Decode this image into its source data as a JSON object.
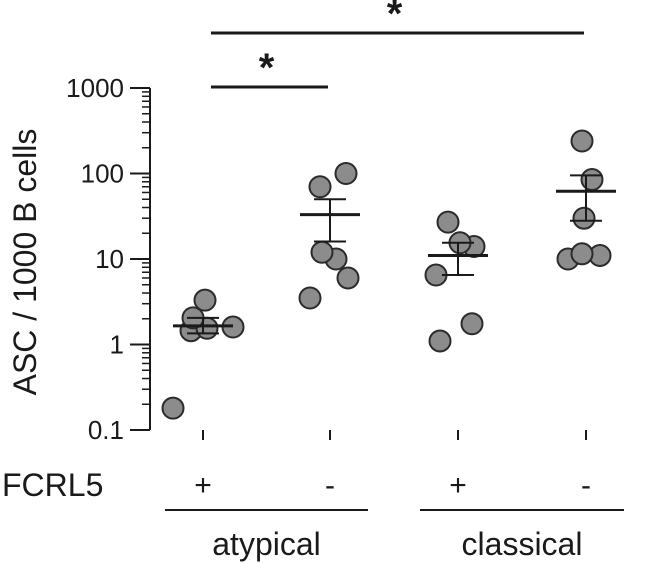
{
  "chart_data": {
    "type": "scatter",
    "title": "",
    "ylabel": "ASC / 1000 B cells",
    "yscale": "log",
    "ylim": [
      0.1,
      1000
    ],
    "yticks": [
      {
        "value": 0.1,
        "label": "0.1"
      },
      {
        "value": 1,
        "label": "1"
      },
      {
        "value": 10,
        "label": "10"
      },
      {
        "value": 100,
        "label": "100"
      },
      {
        "value": 1000,
        "label": "1000"
      }
    ],
    "row_label": "FCRL5",
    "groups": [
      {
        "fcrl5": "+",
        "cell_type": "atypical",
        "values": [
          0.18,
          1.45,
          1.55,
          1.6,
          2.05,
          3.3
        ],
        "mean": 1.65,
        "sem_low": 1.35,
        "sem_high": 2.05
      },
      {
        "fcrl5": "-",
        "cell_type": "atypical",
        "values": [
          3.5,
          6.0,
          10.0,
          12.0,
          70.0,
          100.0
        ],
        "mean": 33.0,
        "sem_low": 16.0,
        "sem_high": 50.0
      },
      {
        "fcrl5": "+",
        "cell_type": "classical",
        "values": [
          1.1,
          1.75,
          6.5,
          14.0,
          15.5,
          27.0
        ],
        "mean": 11.0,
        "sem_low": 6.5,
        "sem_high": 15.5
      },
      {
        "fcrl5": "-",
        "cell_type": "classical",
        "values": [
          10.0,
          11.0,
          11.5,
          30.0,
          85.0,
          240.0
        ],
        "mean": 62.0,
        "sem_low": 28.0,
        "sem_high": 95.0
      }
    ],
    "categories": [
      {
        "label": "atypical",
        "groups": [
          0,
          1
        ]
      },
      {
        "label": "classical",
        "groups": [
          2,
          3
        ]
      }
    ],
    "significance": [
      {
        "from": 0,
        "to": 1,
        "label": "*"
      },
      {
        "from": 0,
        "to": 3,
        "label": "*"
      }
    ],
    "colors": {
      "point_fill": "#8c8c8c",
      "point_stroke": "#2b2b2b",
      "line": "#1a1a1a"
    }
  }
}
